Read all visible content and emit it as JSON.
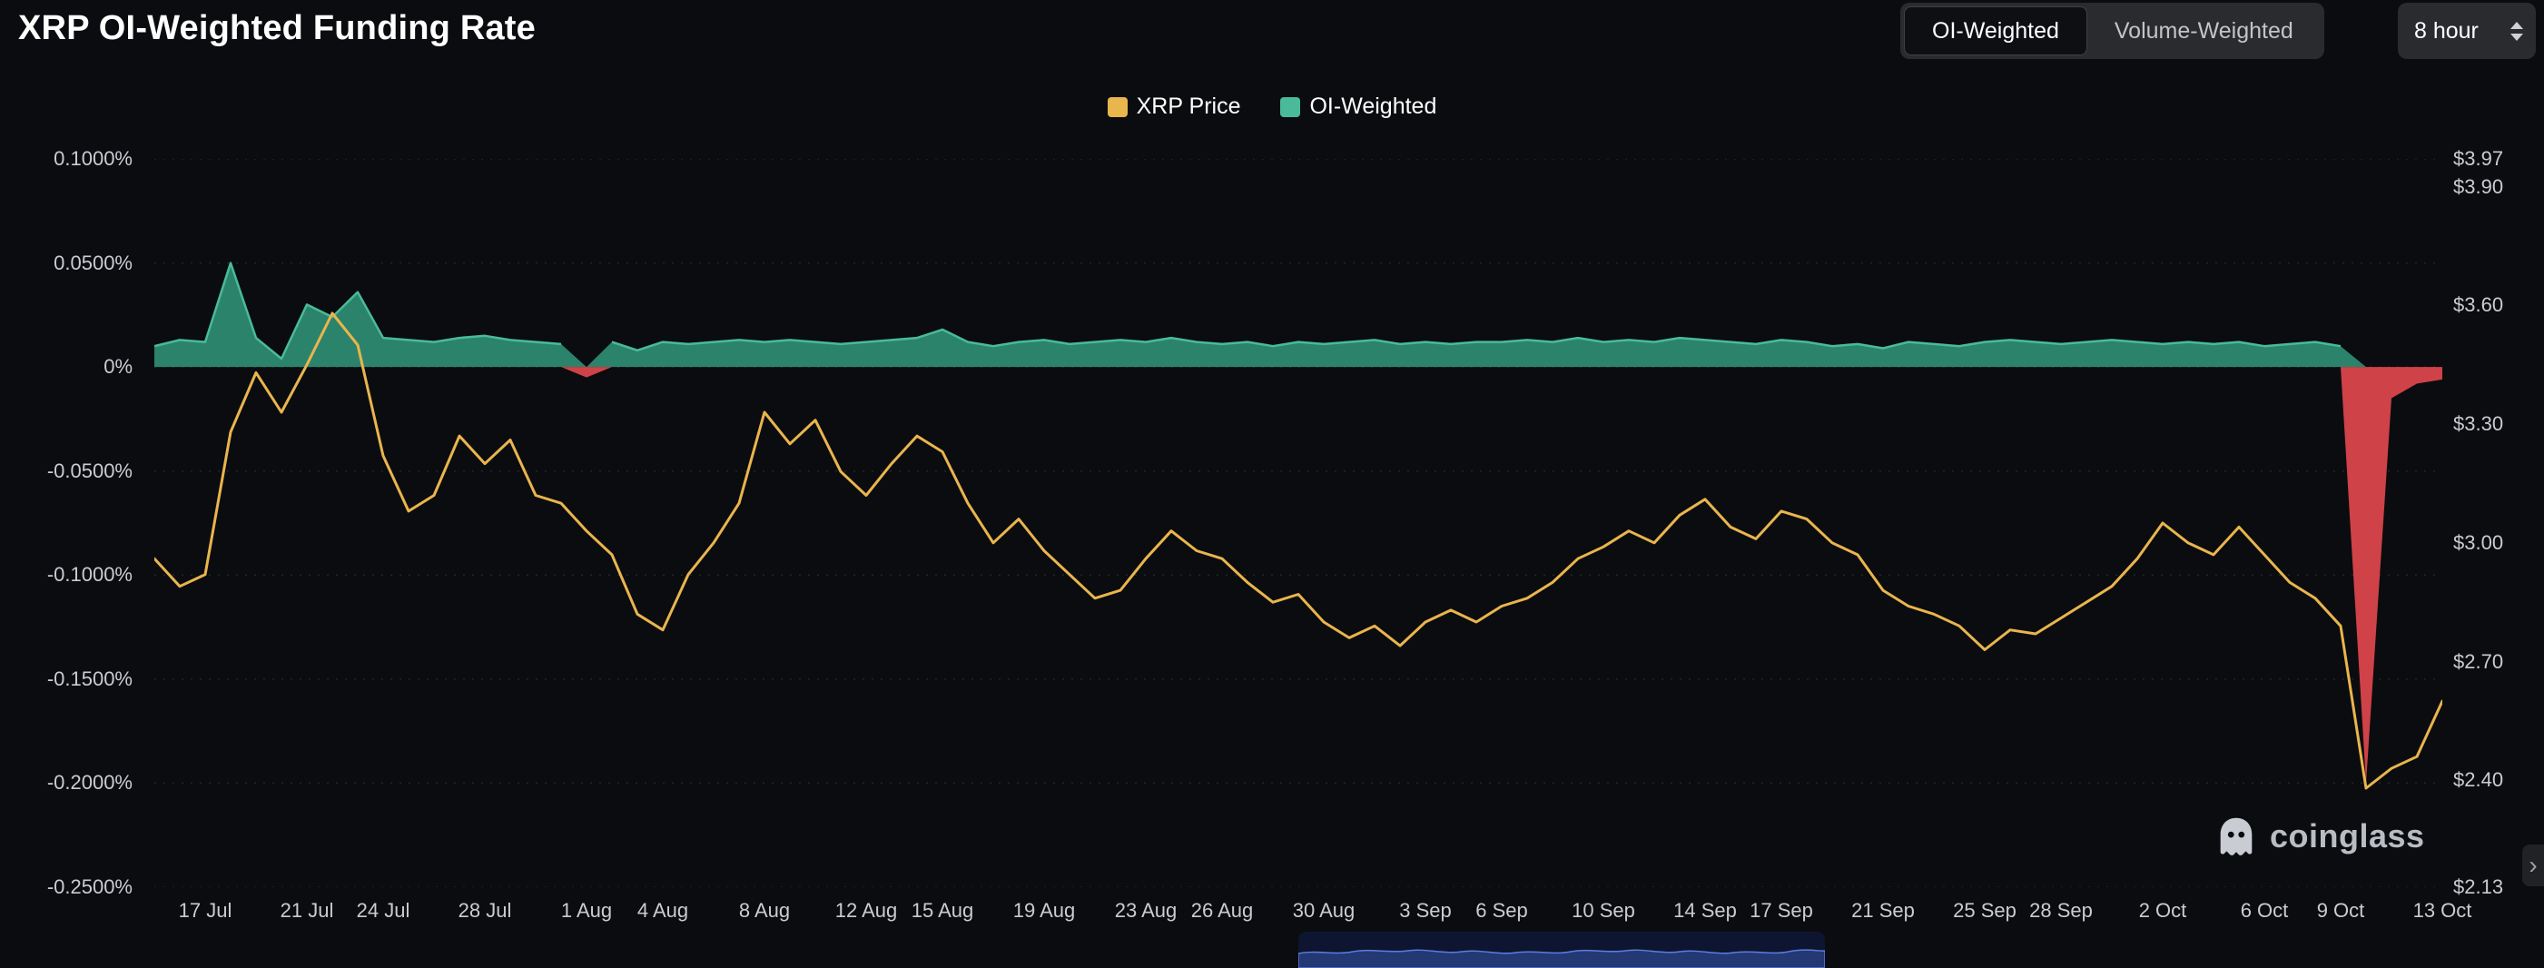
{
  "header": {
    "title": "XRP OI-Weighted Funding Rate",
    "toggle": {
      "options": [
        "OI-Weighted",
        "Volume-Weighted"
      ],
      "active": "OI-Weighted"
    },
    "interval": {
      "value": "8 hour"
    }
  },
  "watermark": {
    "label": "coinglass"
  },
  "icons": {
    "chevron_right": "›"
  },
  "colors": {
    "background": "#0b0c0f",
    "grid": "rgba(255,255,255,0.10)",
    "axis_text": "#c9ccd1",
    "price_line": "#e9b54d",
    "funding_positive": "#2f9076",
    "funding_edge": "#49bb9a",
    "funding_negative": "#d9464c"
  },
  "chart_data": {
    "type": "line+area",
    "title": "XRP OI-Weighted Funding Rate",
    "legend_position": "top-center",
    "grid": "horizontal-dotted",
    "n_points": 91,
    "x_labels": [
      "17 Jul",
      "21 Jul",
      "24 Jul",
      "28 Jul",
      "1 Aug",
      "4 Aug",
      "8 Aug",
      "12 Aug",
      "15 Aug",
      "19 Aug",
      "23 Aug",
      "26 Aug",
      "30 Aug",
      "3 Sep",
      "6 Sep",
      "10 Sep",
      "14 Sep",
      "17 Sep",
      "21 Sep",
      "25 Sep",
      "28 Sep",
      "2 Oct",
      "6 Oct",
      "9 Oct",
      "13 Oct"
    ],
    "x_label_days": [
      2,
      6,
      9,
      13,
      17,
      20,
      24,
      28,
      31,
      35,
      39,
      42,
      46,
      50,
      53,
      57,
      61,
      64,
      68,
      72,
      75,
      79,
      83,
      86,
      90
    ],
    "left_axis": {
      "label": "OI-weighted funding rate",
      "unit": "%",
      "min": -0.25,
      "max": 0.1,
      "ticks": [
        "0.1000%",
        "0.0500%",
        "0%",
        "-0.0500%",
        "-0.1000%",
        "-0.1500%",
        "-0.2000%",
        "-0.2500%"
      ],
      "tick_values": [
        0.1,
        0.05,
        0,
        -0.05,
        -0.1,
        -0.15,
        -0.2,
        -0.25
      ]
    },
    "right_axis": {
      "label": "XRP price",
      "unit": "USD",
      "min": 2.13,
      "max": 3.97,
      "ticks": [
        "$3.97",
        "$3.90",
        "$3.60",
        "$3.30",
        "$3.00",
        "$2.70",
        "$2.40",
        "$2.13"
      ],
      "tick_values": [
        3.97,
        3.9,
        3.6,
        3.3,
        3.0,
        2.7,
        2.4,
        2.13
      ]
    },
    "series": [
      {
        "name": "XRP Price",
        "type": "line",
        "axis": "right",
        "color": "#e9b54d",
        "values": [
          2.96,
          2.89,
          2.92,
          3.28,
          3.43,
          3.33,
          3.45,
          3.58,
          3.5,
          3.22,
          3.08,
          3.12,
          3.27,
          3.2,
          3.26,
          3.12,
          3.1,
          3.03,
          2.97,
          2.82,
          2.78,
          2.92,
          3.0,
          3.1,
          3.33,
          3.25,
          3.31,
          3.18,
          3.12,
          3.2,
          3.27,
          3.23,
          3.1,
          3.0,
          3.06,
          2.98,
          2.92,
          2.86,
          2.88,
          2.96,
          3.03,
          2.98,
          2.96,
          2.9,
          2.85,
          2.87,
          2.8,
          2.76,
          2.79,
          2.74,
          2.8,
          2.83,
          2.8,
          2.84,
          2.86,
          2.9,
          2.96,
          2.99,
          3.03,
          3.0,
          3.07,
          3.11,
          3.04,
          3.01,
          3.08,
          3.06,
          3.0,
          2.97,
          2.88,
          2.84,
          2.82,
          2.79,
          2.73,
          2.78,
          2.77,
          2.81,
          2.85,
          2.89,
          2.96,
          3.05,
          3.0,
          2.97,
          3.04,
          2.97,
          2.9,
          2.86,
          2.79,
          2.38,
          2.43,
          2.46,
          2.6
        ]
      },
      {
        "name": "OI-Weighted",
        "type": "area",
        "axis": "left",
        "color": "#49bb9a",
        "color_positive": "#2f9076",
        "color_negative": "#d9464c",
        "values": [
          0.01,
          0.013,
          0.012,
          0.05,
          0.014,
          0.004,
          0.03,
          0.024,
          0.036,
          0.014,
          0.013,
          0.012,
          0.014,
          0.015,
          0.013,
          0.012,
          0.011,
          -0.005,
          0.012,
          0.008,
          0.012,
          0.011,
          0.012,
          0.013,
          0.012,
          0.013,
          0.012,
          0.011,
          0.012,
          0.013,
          0.014,
          0.018,
          0.012,
          0.01,
          0.012,
          0.013,
          0.011,
          0.012,
          0.013,
          0.012,
          0.014,
          0.012,
          0.011,
          0.012,
          0.01,
          0.012,
          0.011,
          0.012,
          0.013,
          0.011,
          0.012,
          0.011,
          0.012,
          0.012,
          0.013,
          0.012,
          0.014,
          0.012,
          0.013,
          0.012,
          0.014,
          0.013,
          0.012,
          0.011,
          0.013,
          0.012,
          0.01,
          0.011,
          0.009,
          0.012,
          0.011,
          0.01,
          0.012,
          0.013,
          0.012,
          0.011,
          0.012,
          0.013,
          0.012,
          0.011,
          0.012,
          0.011,
          0.012,
          0.01,
          0.011,
          0.012,
          0.01,
          -0.2,
          -0.015,
          -0.008,
          -0.006
        ]
      }
    ]
  }
}
